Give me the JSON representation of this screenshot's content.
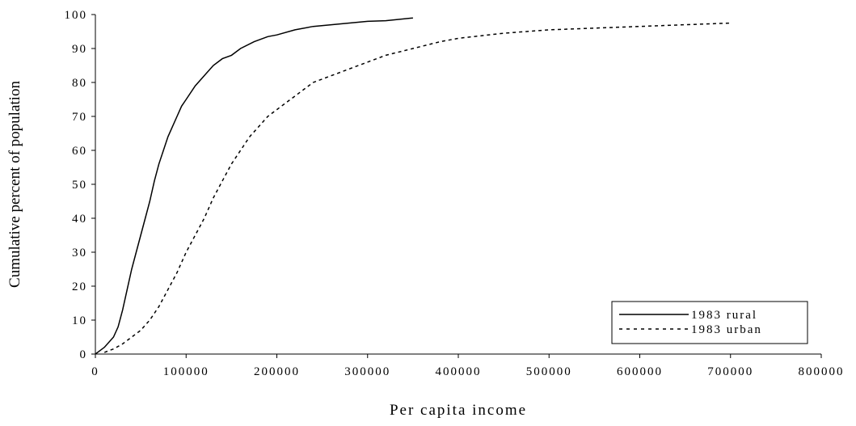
{
  "chart_data": {
    "type": "line",
    "title": "",
    "xlabel": "Per capita income",
    "ylabel": "Cumulative percent of population",
    "xlim": [
      0,
      800000
    ],
    "ylim": [
      0,
      100
    ],
    "x_ticks": [
      0,
      100000,
      200000,
      300000,
      400000,
      500000,
      600000,
      700000,
      800000
    ],
    "y_ticks": [
      0,
      10,
      20,
      30,
      40,
      50,
      60,
      70,
      80,
      90,
      100
    ],
    "grid": false,
    "legend_position": "bottom-right",
    "series": [
      {
        "name": "1983 rural",
        "style": "solid",
        "points": [
          [
            0,
            0
          ],
          [
            10000,
            2
          ],
          [
            20000,
            5
          ],
          [
            25000,
            8
          ],
          [
            30000,
            13
          ],
          [
            35000,
            19
          ],
          [
            40000,
            25
          ],
          [
            45000,
            30
          ],
          [
            50000,
            35
          ],
          [
            55000,
            40
          ],
          [
            60000,
            45
          ],
          [
            65000,
            51
          ],
          [
            70000,
            56
          ],
          [
            75000,
            60
          ],
          [
            80000,
            64
          ],
          [
            85000,
            67
          ],
          [
            90000,
            70
          ],
          [
            95000,
            73
          ],
          [
            100000,
            75
          ],
          [
            110000,
            79
          ],
          [
            120000,
            82
          ],
          [
            130000,
            85
          ],
          [
            140000,
            87
          ],
          [
            150000,
            88
          ],
          [
            160000,
            90
          ],
          [
            175000,
            92
          ],
          [
            190000,
            93.5
          ],
          [
            200000,
            94
          ],
          [
            220000,
            95.5
          ],
          [
            240000,
            96.5
          ],
          [
            260000,
            97
          ],
          [
            280000,
            97.5
          ],
          [
            300000,
            98
          ],
          [
            320000,
            98.2
          ],
          [
            350000,
            99
          ]
        ]
      },
      {
        "name": "1983 urban",
        "style": "dashed",
        "points": [
          [
            10000,
            0.5
          ],
          [
            20000,
            1.5
          ],
          [
            30000,
            3
          ],
          [
            40000,
            5
          ],
          [
            50000,
            7
          ],
          [
            60000,
            10
          ],
          [
            70000,
            14
          ],
          [
            80000,
            19
          ],
          [
            90000,
            24
          ],
          [
            100000,
            30
          ],
          [
            110000,
            35
          ],
          [
            120000,
            40
          ],
          [
            130000,
            46
          ],
          [
            140000,
            51
          ],
          [
            150000,
            56
          ],
          [
            160000,
            60
          ],
          [
            170000,
            64
          ],
          [
            180000,
            67
          ],
          [
            190000,
            70
          ],
          [
            200000,
            72
          ],
          [
            210000,
            74
          ],
          [
            220000,
            76
          ],
          [
            230000,
            78
          ],
          [
            240000,
            80
          ],
          [
            260000,
            82
          ],
          [
            280000,
            84
          ],
          [
            300000,
            86
          ],
          [
            320000,
            88
          ],
          [
            350000,
            90
          ],
          [
            380000,
            92
          ],
          [
            400000,
            93
          ],
          [
            450000,
            94.5
          ],
          [
            500000,
            95.5
          ],
          [
            550000,
            96
          ],
          [
            600000,
            96.5
          ],
          [
            650000,
            97
          ],
          [
            700000,
            97.5
          ]
        ]
      }
    ]
  }
}
